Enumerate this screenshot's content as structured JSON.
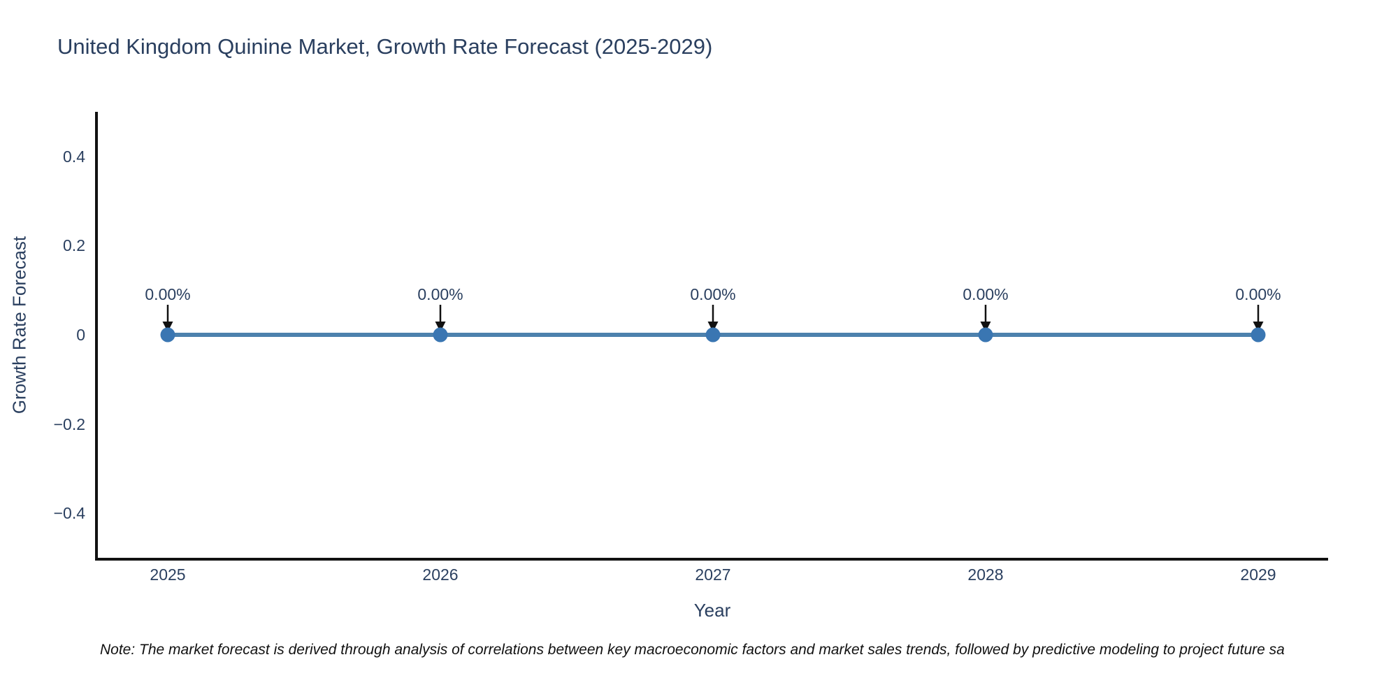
{
  "title": {
    "text": "United Kingdom Quinine Market, Growth Rate Forecast (2025-2029)"
  },
  "note": {
    "text": "Note: The market forecast is derived through analysis of correlations between key macroeconomic factors and market sales trends, followed by predictive modeling to project future sa"
  },
  "chart_data": {
    "type": "line",
    "title": "United Kingdom Quinine Market, Growth Rate Forecast (2025-2029)",
    "xlabel": "Year",
    "ylabel": "Growth Rate Forecast",
    "x": [
      2025,
      2026,
      2027,
      2028,
      2029
    ],
    "series": [
      {
        "name": "Growth Rate Forecast",
        "values": [
          0,
          0,
          0,
          0,
          0
        ],
        "point_labels": [
          "0.00%",
          "0.00%",
          "0.00%",
          "0.00%",
          "0.00%"
        ]
      }
    ],
    "xlim": [
      2024.74,
      2029.26
    ],
    "ylim": [
      -0.5,
      0.5
    ],
    "xticks": [
      2025,
      2026,
      2027,
      2028,
      2029
    ],
    "xtick_labels": [
      "2025",
      "2026",
      "2027",
      "2028",
      "2029"
    ],
    "yticks": [
      0.4,
      0.2,
      0,
      -0.2,
      -0.4
    ],
    "ytick_labels": [
      "0.4",
      "0.2",
      "0",
      "−0.2",
      "−0.4"
    ],
    "grid": false,
    "legend": "none",
    "annotation_style": "down-arrow-to-point",
    "colors": {
      "line": "#4d81ad",
      "marker": "#3a76b2",
      "arrow": "#111111",
      "label_text": "#2a3f5f",
      "axis": "#111111",
      "title_text": "#2a3f5f",
      "note_text": "#111111"
    }
  }
}
